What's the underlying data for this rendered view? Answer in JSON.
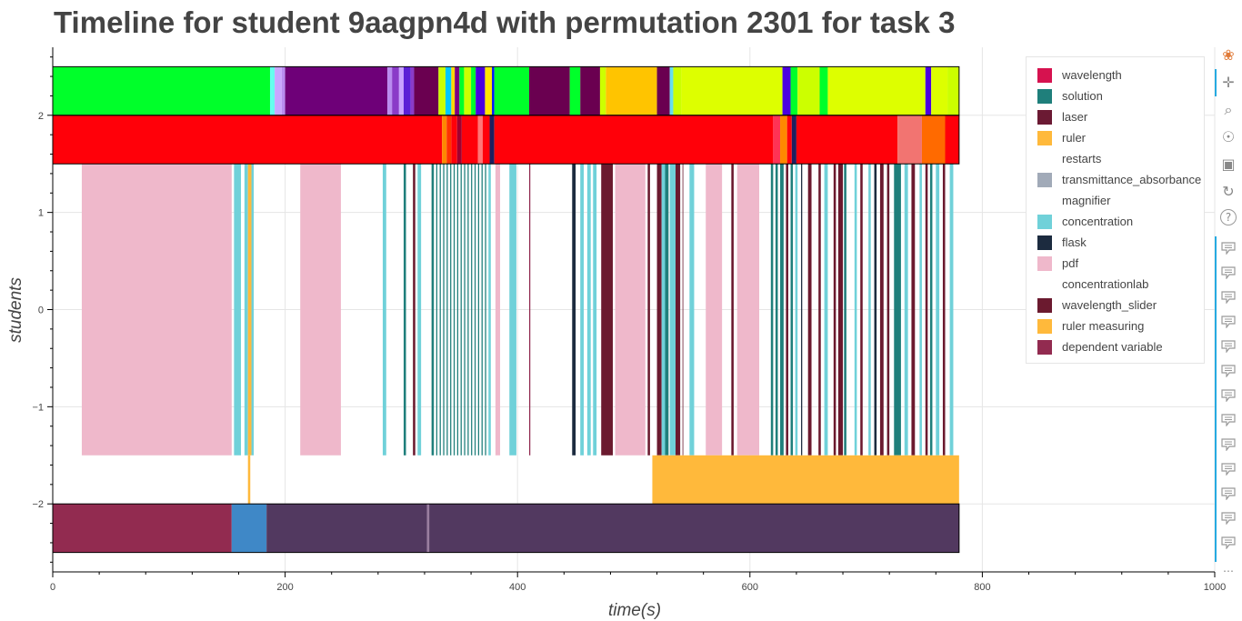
{
  "title": "Timeline for student 9aagpn4d with permutation 2301 for task 3",
  "colors": {
    "wavelength": "#d6124f",
    "solution": "#1f7f7b",
    "laser": "#6b1a33",
    "ruler": "#ffb93b",
    "restarts": "#ffffff",
    "transmittance_absorbance": "#a1aab8",
    "magnifier": "#ffffff",
    "concentration": "#70d1d9",
    "flask": "#1c2b3f",
    "pdf": "#efb8cb",
    "concentrationlab": "#ffffff",
    "wavelength_slider": "#6b1a2f",
    "ruler_measuring": "#ffb93b",
    "dependent_variable": "#922b50"
  },
  "legend": {
    "items": [
      {
        "label": "wavelength",
        "color": "#d6124f"
      },
      {
        "label": "solution",
        "color": "#1f7f7b"
      },
      {
        "label": "laser",
        "color": "#6b1a33"
      },
      {
        "label": "ruler",
        "color": "#ffb93b"
      },
      {
        "label": "restarts",
        "color": "#ffffff"
      },
      {
        "label": "transmittance_absorbance",
        "color": "#a1aab8"
      },
      {
        "label": "magnifier",
        "color": "#ffffff"
      },
      {
        "label": "concentration",
        "color": "#70d1d9"
      },
      {
        "label": "flask",
        "color": "#1c2b3f"
      },
      {
        "label": "pdf",
        "color": "#efb8cb"
      },
      {
        "label": "concentrationlab",
        "color": "#ffffff"
      },
      {
        "label": "wavelength_slider",
        "color": "#6b1a2f"
      },
      {
        "label": "ruler measuring",
        "color": "#ffb93b"
      },
      {
        "label": "dependent variable",
        "color": "#922b50"
      }
    ]
  },
  "toolbar": {
    "icons": [
      "bokeh-logo-icon",
      "pan-icon",
      "box-zoom-icon",
      "wheel-zoom-icon",
      "save-icon",
      "reset-icon",
      "help-icon"
    ],
    "hover_count": 13
  },
  "chart_data": {
    "type": "timeline",
    "xlabel": "time(s)",
    "ylabel": "students",
    "xlim": [
      0,
      1000
    ],
    "ylim": [
      -2.7,
      2.7
    ],
    "x_ticks": [
      0,
      200,
      400,
      600,
      800,
      1000
    ],
    "y_ticks": [
      -2,
      -1,
      0,
      1,
      2
    ],
    "grid": true,
    "legend_position": "top-right",
    "lanes": [
      {
        "name": "top-lane",
        "y_range": [
          2.0,
          2.5
        ],
        "segments": [
          {
            "start": 0,
            "end": 187,
            "color": "#00ff2a"
          },
          {
            "start": 187,
            "end": 191,
            "color": "#66ffee"
          },
          {
            "start": 191,
            "end": 197,
            "color": "#c9a6ff"
          },
          {
            "start": 197,
            "end": 200,
            "color": "#b98cf0"
          },
          {
            "start": 200,
            "end": 288,
            "color": "#6e0078"
          },
          {
            "start": 288,
            "end": 292,
            "color": "#b98cf0"
          },
          {
            "start": 292,
            "end": 298,
            "color": "#8a3bc8"
          },
          {
            "start": 298,
            "end": 302,
            "color": "#c7a1ff"
          },
          {
            "start": 302,
            "end": 308,
            "color": "#5a1fd6"
          },
          {
            "start": 308,
            "end": 311,
            "color": "#8a3bc8"
          },
          {
            "start": 311,
            "end": 332,
            "color": "#6a0050"
          },
          {
            "start": 332,
            "end": 338,
            "color": "#ccff00"
          },
          {
            "start": 338,
            "end": 343,
            "color": "#00c8ff"
          },
          {
            "start": 343,
            "end": 346,
            "color": "#ffd700"
          },
          {
            "start": 346,
            "end": 350,
            "color": "#7a0080"
          },
          {
            "start": 350,
            "end": 354,
            "color": "#00ff2a"
          },
          {
            "start": 354,
            "end": 360,
            "color": "#ccff00"
          },
          {
            "start": 360,
            "end": 364,
            "color": "#00ff2a"
          },
          {
            "start": 364,
            "end": 372,
            "color": "#4b00e0"
          },
          {
            "start": 372,
            "end": 378,
            "color": "#ffe600"
          },
          {
            "start": 378,
            "end": 380,
            "color": "#0011ff"
          },
          {
            "start": 380,
            "end": 410,
            "color": "#00ff2a"
          },
          {
            "start": 410,
            "end": 445,
            "color": "#6a0050"
          },
          {
            "start": 445,
            "end": 454,
            "color": "#00ff2a"
          },
          {
            "start": 454,
            "end": 471,
            "color": "#6a0050"
          },
          {
            "start": 471,
            "end": 476,
            "color": "#ccff00"
          },
          {
            "start": 476,
            "end": 520,
            "color": "#ffc400"
          },
          {
            "start": 520,
            "end": 531,
            "color": "#6a0050"
          },
          {
            "start": 531,
            "end": 534,
            "color": "#66ddee"
          },
          {
            "start": 534,
            "end": 541,
            "color": "#ccff00"
          },
          {
            "start": 541,
            "end": 628,
            "color": "#ddff00"
          },
          {
            "start": 628,
            "end": 635,
            "color": "#4b00e0"
          },
          {
            "start": 635,
            "end": 641,
            "color": "#00ff2a"
          },
          {
            "start": 641,
            "end": 660,
            "color": "#ccff00"
          },
          {
            "start": 660,
            "end": 667,
            "color": "#00ff2a"
          },
          {
            "start": 667,
            "end": 751,
            "color": "#ddff00"
          },
          {
            "start": 751,
            "end": 756,
            "color": "#4b00e0"
          },
          {
            "start": 756,
            "end": 770,
            "color": "#ddff00"
          },
          {
            "start": 770,
            "end": 780,
            "color": "#ccff00"
          }
        ]
      },
      {
        "name": "second-lane",
        "y_range": [
          1.5,
          2.0
        ],
        "segments": [
          {
            "start": 0,
            "end": 335,
            "color": "#ff0009"
          },
          {
            "start": 335,
            "end": 339,
            "color": "#ff8800"
          },
          {
            "start": 339,
            "end": 343,
            "color": "#ff3300"
          },
          {
            "start": 343,
            "end": 348,
            "color": "#ff0009"
          },
          {
            "start": 348,
            "end": 352,
            "color": "#a00030"
          },
          {
            "start": 352,
            "end": 366,
            "color": "#ff0009"
          },
          {
            "start": 366,
            "end": 370,
            "color": "#ff7777"
          },
          {
            "start": 370,
            "end": 376,
            "color": "#ff0009"
          },
          {
            "start": 376,
            "end": 380,
            "color": "#1f1f5f"
          },
          {
            "start": 380,
            "end": 620,
            "color": "#ff0009"
          },
          {
            "start": 620,
            "end": 626,
            "color": "#ff3355"
          },
          {
            "start": 626,
            "end": 632,
            "color": "#ff8800"
          },
          {
            "start": 632,
            "end": 636,
            "color": "#ff0009"
          },
          {
            "start": 636,
            "end": 640,
            "color": "#1f1f5f"
          },
          {
            "start": 640,
            "end": 727,
            "color": "#ff0009"
          },
          {
            "start": 727,
            "end": 748,
            "color": "#f27471"
          },
          {
            "start": 748,
            "end": 768,
            "color": "#ff6a00"
          },
          {
            "start": 768,
            "end": 780,
            "color": "#ff0009"
          }
        ]
      },
      {
        "name": "events-lane",
        "y_range": [
          -1.5,
          1.5
        ],
        "segments": [
          {
            "start": 25,
            "end": 154,
            "color": "#efb8cb"
          },
          {
            "start": 156,
            "end": 162,
            "color": "#70d1d9"
          },
          {
            "start": 165,
            "end": 168,
            "color": "#70d1d9"
          },
          {
            "start": 168,
            "end": 171,
            "color": "#ffb93b"
          },
          {
            "start": 171,
            "end": 173,
            "color": "#70d1d9"
          },
          {
            "start": 213,
            "end": 248,
            "color": "#efb8cb"
          },
          {
            "start": 284,
            "end": 287,
            "color": "#70d1d9"
          },
          {
            "start": 302,
            "end": 304,
            "color": "#1f7f7b"
          },
          {
            "start": 310,
            "end": 312,
            "color": "#6b1a2f"
          },
          {
            "start": 314,
            "end": 317,
            "color": "#70d1d9"
          },
          {
            "start": 326,
            "end": 328,
            "color": "#1f7f7b"
          },
          {
            "start": 330,
            "end": 331,
            "color": "#1f7f7b"
          },
          {
            "start": 333,
            "end": 334,
            "color": "#1f7f7b"
          },
          {
            "start": 336,
            "end": 337,
            "color": "#1f7f7b"
          },
          {
            "start": 339,
            "end": 340,
            "color": "#1f7f7b"
          },
          {
            "start": 342,
            "end": 343,
            "color": "#1f7f7b"
          },
          {
            "start": 345,
            "end": 346,
            "color": "#1f7f7b"
          },
          {
            "start": 348,
            "end": 349,
            "color": "#1f7f7b"
          },
          {
            "start": 351,
            "end": 352,
            "color": "#1f7f7b"
          },
          {
            "start": 354,
            "end": 355,
            "color": "#1f7f7b"
          },
          {
            "start": 357,
            "end": 358,
            "color": "#1f7f7b"
          },
          {
            "start": 360,
            "end": 361,
            "color": "#1f7f7b"
          },
          {
            "start": 363,
            "end": 364,
            "color": "#1f7f7b"
          },
          {
            "start": 366,
            "end": 367,
            "color": "#1f7f7b"
          },
          {
            "start": 369,
            "end": 370,
            "color": "#1f7f7b"
          },
          {
            "start": 372,
            "end": 373,
            "color": "#1f7f7b"
          },
          {
            "start": 375,
            "end": 377,
            "color": "#70d1d9"
          },
          {
            "start": 381,
            "end": 385,
            "color": "#efb8cb"
          },
          {
            "start": 393,
            "end": 399,
            "color": "#70d1d9"
          },
          {
            "start": 410,
            "end": 411,
            "color": "#922b50"
          },
          {
            "start": 447,
            "end": 450,
            "color": "#1c2b3f"
          },
          {
            "start": 454,
            "end": 457,
            "color": "#70d1d9"
          },
          {
            "start": 460,
            "end": 463,
            "color": "#70d1d9"
          },
          {
            "start": 465,
            "end": 468,
            "color": "#70d1d9"
          },
          {
            "start": 472,
            "end": 482,
            "color": "#6b1a2f"
          },
          {
            "start": 484,
            "end": 510,
            "color": "#efb8cb"
          },
          {
            "start": 512,
            "end": 514,
            "color": "#6b1a2f"
          },
          {
            "start": 520,
            "end": 524,
            "color": "#6b1a2f"
          },
          {
            "start": 524,
            "end": 527,
            "color": "#70d1d9"
          },
          {
            "start": 527,
            "end": 530,
            "color": "#1f7f7b"
          },
          {
            "start": 531,
            "end": 536,
            "color": "#70d1d9"
          },
          {
            "start": 536,
            "end": 540,
            "color": "#6b1a2f"
          },
          {
            "start": 542,
            "end": 542.5,
            "color": "#6b1a2f"
          },
          {
            "start": 548,
            "end": 552,
            "color": "#70d1d9"
          },
          {
            "start": 562,
            "end": 576,
            "color": "#efb8cb"
          },
          {
            "start": 584,
            "end": 586,
            "color": "#6b1a2f"
          },
          {
            "start": 589,
            "end": 608,
            "color": "#efb8cb"
          },
          {
            "start": 618,
            "end": 620,
            "color": "#1f7f7b"
          },
          {
            "start": 622,
            "end": 624,
            "color": "#1f7f7b"
          },
          {
            "start": 626,
            "end": 629,
            "color": "#1f7f7b"
          },
          {
            "start": 631,
            "end": 633,
            "color": "#6b1a2f"
          },
          {
            "start": 635,
            "end": 637,
            "color": "#1f7f7b"
          },
          {
            "start": 639,
            "end": 641,
            "color": "#70d1d9"
          },
          {
            "start": 644,
            "end": 645,
            "color": "#1c2b3f"
          },
          {
            "start": 650,
            "end": 653,
            "color": "#6b1a2f"
          },
          {
            "start": 659,
            "end": 661,
            "color": "#6b1a2f"
          },
          {
            "start": 664,
            "end": 667,
            "color": "#70d1d9"
          },
          {
            "start": 672,
            "end": 674,
            "color": "#6b1a2f"
          },
          {
            "start": 676,
            "end": 680,
            "color": "#6b1a2f"
          },
          {
            "start": 681,
            "end": 683,
            "color": "#1f7f7b"
          },
          {
            "start": 690,
            "end": 692,
            "color": "#70d1d9"
          },
          {
            "start": 695,
            "end": 697,
            "color": "#6b1a2f"
          },
          {
            "start": 702,
            "end": 704,
            "color": "#70d1d9"
          },
          {
            "start": 707,
            "end": 709,
            "color": "#1c2b3f"
          },
          {
            "start": 712,
            "end": 715,
            "color": "#6b1a2f"
          },
          {
            "start": 718,
            "end": 720,
            "color": "#6b1a2f"
          },
          {
            "start": 724,
            "end": 730,
            "color": "#1f7f7b"
          },
          {
            "start": 733,
            "end": 736,
            "color": "#70d1d9"
          },
          {
            "start": 739,
            "end": 742,
            "color": "#6b1a2f"
          },
          {
            "start": 746,
            "end": 748,
            "color": "#70d1d9"
          },
          {
            "start": 751,
            "end": 753,
            "color": "#6b1a2f"
          },
          {
            "start": 755,
            "end": 757,
            "color": "#1f7f7b"
          },
          {
            "start": 760,
            "end": 763,
            "color": "#70d1d9"
          },
          {
            "start": 766,
            "end": 768,
            "color": "#6b1a2f"
          },
          {
            "start": 772,
            "end": 775,
            "color": "#70d1d9"
          }
        ]
      },
      {
        "name": "ruler-measuring-lane",
        "y_range": [
          -2.0,
          -1.5
        ],
        "segments": [
          {
            "start": 168,
            "end": 170,
            "color": "#ffb93b"
          },
          {
            "start": 516,
            "end": 780,
            "color": "#ffb93b"
          }
        ]
      },
      {
        "name": "bottom-lane",
        "y_range": [
          -2.5,
          -2.0
        ],
        "segments": [
          {
            "start": 0,
            "end": 154,
            "color": "#922b50"
          },
          {
            "start": 154,
            "end": 184,
            "color": "#3f88c7"
          },
          {
            "start": 184,
            "end": 322,
            "color": "#523960"
          },
          {
            "start": 322,
            "end": 324,
            "color": "#9a7ea0"
          },
          {
            "start": 324,
            "end": 780,
            "color": "#523960"
          }
        ]
      }
    ]
  }
}
